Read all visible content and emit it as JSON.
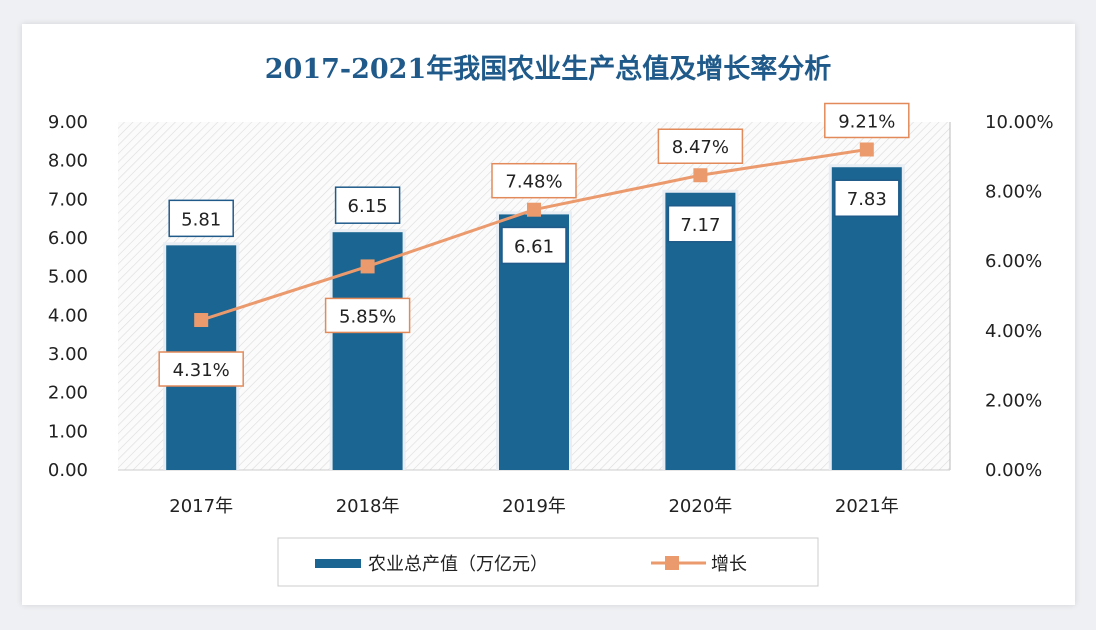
{
  "chart_data": {
    "type": "bar+line",
    "title": "2017-2021年我国农业生产总值及增长率分析",
    "categories": [
      "2017年",
      "2018年",
      "2019年",
      "2020年",
      "2021年"
    ],
    "series": [
      {
        "name": "农业总产值（万亿元）",
        "type": "bar",
        "axis": "left",
        "values": [
          5.81,
          6.15,
          6.61,
          7.17,
          7.83
        ],
        "labels": [
          "5.81",
          "6.15",
          "6.61",
          "7.17",
          "7.83"
        ],
        "color": "#1a6591"
      },
      {
        "name": "增长",
        "type": "line",
        "axis": "right",
        "values": [
          4.31,
          5.85,
          7.48,
          8.47,
          9.21
        ],
        "labels": [
          "4.31%",
          "5.85%",
          "7.48%",
          "8.47%",
          "9.21%"
        ],
        "color": "#eb9a6e"
      }
    ],
    "left_axis": {
      "ylim": [
        0,
        9
      ],
      "ticks": [
        "0.00",
        "1.00",
        "2.00",
        "3.00",
        "4.00",
        "5.00",
        "6.00",
        "7.00",
        "8.00",
        "9.00"
      ]
    },
    "right_axis": {
      "ylim": [
        0,
        10
      ],
      "ticks": [
        "0.00%",
        "2.00%",
        "4.00%",
        "6.00%",
        "8.00%",
        "10.00%"
      ]
    },
    "grid": false,
    "legend": "bottom"
  }
}
